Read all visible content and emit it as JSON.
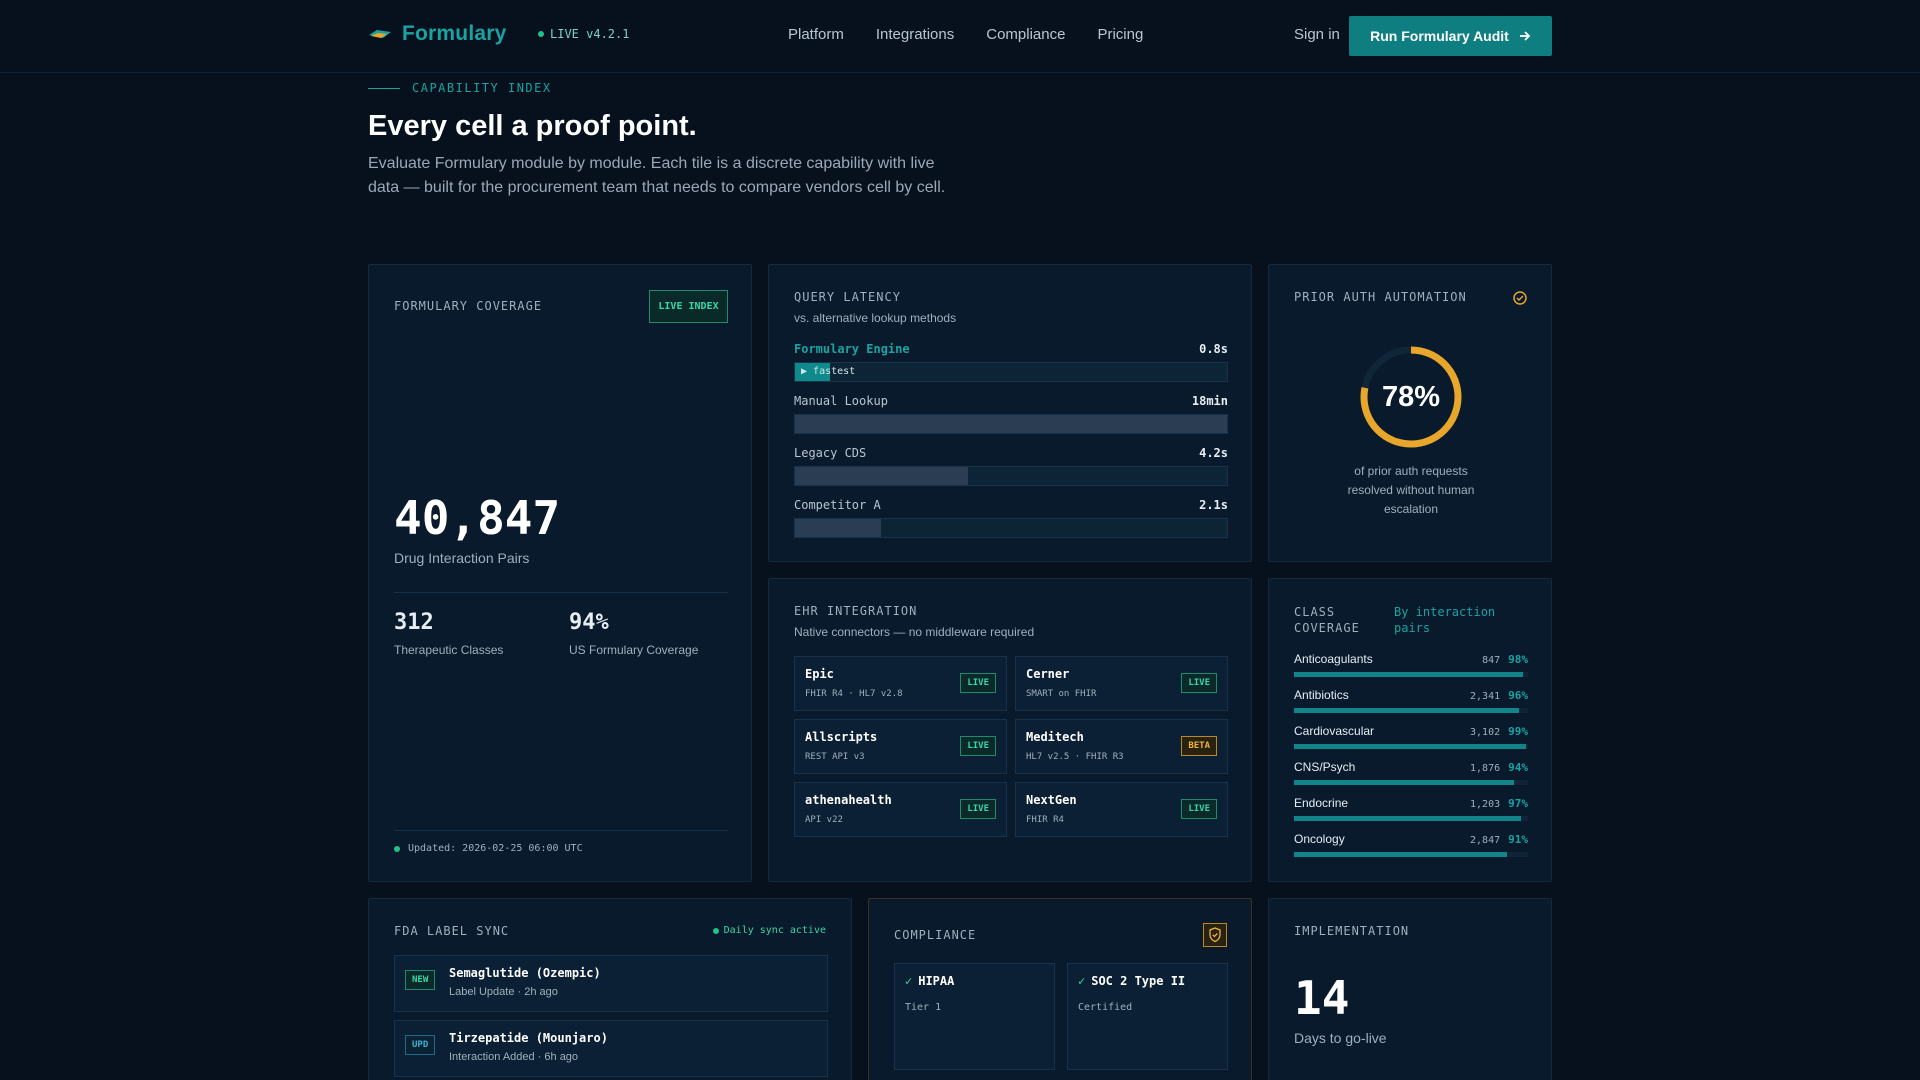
{
  "nav": {
    "brand": "Formulary",
    "version": "LIVE v4.2.1",
    "links": [
      "Platform",
      "Integrations",
      "Compliance",
      "Pricing"
    ],
    "signin": "Sign in",
    "cta": "Run Formulary Audit"
  },
  "hero": {
    "eyebrow": "CAPABILITY INDEX",
    "title": "Every cell a proof point.",
    "subtitle": "Evaluate Formulary module by module. Each tile is a discrete capability with live data — built for the procurement team that needs to compare vendors cell by cell."
  },
  "coverage": {
    "title": "FORMULARY COVERAGE",
    "badge": "LIVE INDEX",
    "value": "40,847",
    "label": "Drug Interaction Pairs",
    "stats": [
      {
        "value": "312",
        "label": "Therapeutic Classes",
        "color": "#19a3a3"
      },
      {
        "value": "94%",
        "label": "US Formulary Coverage",
        "color": "#e8a62b"
      }
    ],
    "updated": "Updated: 2026-02-25 06:00 UTC"
  },
  "latency": {
    "title": "QUERY LATENCY",
    "subtitle": "vs. alternative lookup methods",
    "rows": [
      {
        "label": "Formulary Engine",
        "value": "0.8s",
        "note": "fastest",
        "fill": 0.08
      },
      {
        "label": "Manual Lookup",
        "value": "18min",
        "note": "",
        "fill": 1.0
      },
      {
        "label": "Legacy CDS",
        "value": "4.2s",
        "note": "",
        "fill": 0.4
      },
      {
        "label": "Competitor A",
        "value": "2.1s",
        "note": "",
        "fill": 0.2
      }
    ]
  },
  "prior_auth": {
    "title": "PRIOR AUTH AUTOMATION",
    "percent": "78%",
    "fraction": 0.78,
    "caption": "of prior auth requests resolved without human escalation"
  },
  "ehr": {
    "title": "EHR INTEGRATION",
    "subtitle": "Native connectors — no middleware required",
    "items": [
      {
        "name": "Epic",
        "detail": "FHIR R4 · HL7 v2.8",
        "status": "LIVE"
      },
      {
        "name": "Cerner",
        "detail": "SMART on FHIR",
        "status": "LIVE"
      },
      {
        "name": "Allscripts",
        "detail": "REST API v3",
        "status": "LIVE"
      },
      {
        "name": "Meditech",
        "detail": "HL7 v2.5 · FHIR R3",
        "status": "BETA"
      },
      {
        "name": "athenahealth",
        "detail": "API v22",
        "status": "LIVE"
      },
      {
        "name": "NextGen",
        "detail": "FHIR R4",
        "status": "LIVE"
      }
    ]
  },
  "class_coverage": {
    "title": "CLASS COVERAGE",
    "toggle": "By interaction pairs",
    "rows": [
      {
        "name": "Anticoagulants",
        "count": "847",
        "pct": "98%",
        "fraction": 0.98
      },
      {
        "name": "Antibiotics",
        "count": "2,341",
        "pct": "96%",
        "fraction": 0.96
      },
      {
        "name": "Cardiovascular",
        "count": "3,102",
        "pct": "99%",
        "fraction": 0.99
      },
      {
        "name": "CNS/Psych",
        "count": "1,876",
        "pct": "94%",
        "fraction": 0.94
      },
      {
        "name": "Endocrine",
        "count": "1,203",
        "pct": "97%",
        "fraction": 0.97
      },
      {
        "name": "Oncology",
        "count": "2,847",
        "pct": "91%",
        "fraction": 0.91
      }
    ]
  },
  "fda": {
    "title": "FDA LABEL SYNC",
    "status": "Daily sync active",
    "items": [
      {
        "tag": "NEW",
        "name": "Semaglutide (Ozempic)",
        "detail": "Label Update · 2h ago"
      },
      {
        "tag": "UPD",
        "name": "Tirzepatide (Mounjaro)",
        "detail": "Interaction Added · 6h ago"
      }
    ]
  },
  "compliance": {
    "title": "COMPLIANCE",
    "items": [
      {
        "name": "HIPAA",
        "detail": "Tier 1"
      },
      {
        "name": "SOC 2 Type II",
        "detail": "Certified"
      }
    ]
  },
  "implementation": {
    "title": "IMPLEMENTATION",
    "value": "14",
    "label": "Days to go-live"
  },
  "colors": {
    "background": "#06111d",
    "accent_teal": "#19a3a3",
    "accent_amber": "#e8a62b",
    "cta": "#0f7e80"
  },
  "icons": [
    "logo-icon",
    "arrow-right-icon",
    "check-circle-icon",
    "shield-icon",
    "check-icon",
    "play-icon"
  ]
}
